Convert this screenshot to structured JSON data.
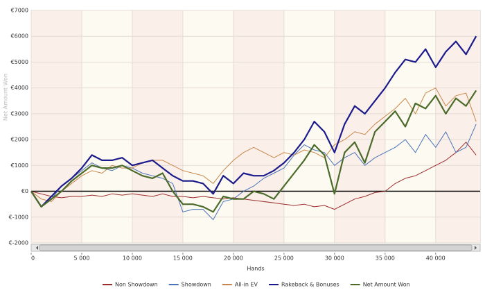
{
  "chart_data": {
    "type": "line",
    "x_label": "Hands",
    "y_label": "Net Amount Won",
    "x": [
      0,
      1000,
      2000,
      3000,
      4000,
      5000,
      6000,
      7000,
      8000,
      9000,
      10000,
      11000,
      12000,
      13000,
      14000,
      15000,
      16000,
      17000,
      18000,
      19000,
      20000,
      21000,
      22000,
      23000,
      24000,
      25000,
      26000,
      27000,
      28000,
      29000,
      30000,
      31000,
      32000,
      33000,
      34000,
      35000,
      36000,
      37000,
      38000,
      39000,
      40000,
      41000,
      42000,
      43000,
      44000
    ],
    "series": [
      {
        "name": "Non Showdown",
        "color": "#9b2d2d",
        "width": 1,
        "values": [
          0,
          -100,
          -200,
          -250,
          -200,
          -200,
          -150,
          -200,
          -100,
          -150,
          -100,
          -150,
          -200,
          -100,
          -200,
          -200,
          -250,
          -200,
          -250,
          -300,
          -250,
          -300,
          -350,
          -400,
          -450,
          -500,
          -550,
          -500,
          -600,
          -550,
          -700,
          -500,
          -300,
          -200,
          -50,
          0,
          300,
          500,
          600,
          800,
          1000,
          1200,
          1500,
          1900,
          1400
        ]
      },
      {
        "name": "Showdown",
        "color": "#4a73b8",
        "width": 1,
        "values": [
          0,
          -600,
          -300,
          200,
          500,
          800,
          1100,
          900,
          800,
          1000,
          900,
          700,
          600,
          500,
          300,
          -800,
          -700,
          -700,
          -1100,
          -400,
          -300,
          0,
          200,
          500,
          700,
          900,
          1400,
          1800,
          1600,
          1500,
          1000,
          1300,
          1500,
          1000,
          1300,
          1500,
          1700,
          2000,
          1500,
          2200,
          1700,
          2300,
          1500,
          1700,
          2600
        ]
      },
      {
        "name": "All-in EV",
        "color": "#c8864a",
        "width": 1,
        "values": [
          0,
          -300,
          -400,
          0,
          300,
          600,
          800,
          700,
          1000,
          900,
          900,
          1100,
          1200,
          1200,
          1000,
          800,
          700,
          600,
          300,
          800,
          1200,
          1500,
          1700,
          1500,
          1300,
          1500,
          1400,
          1600,
          1500,
          1300,
          1800,
          2000,
          2300,
          2200,
          2600,
          2900,
          3200,
          3600,
          3000,
          3800,
          4000,
          3300,
          3700,
          3800,
          2700
        ]
      },
      {
        "name": "Rakeback & Bonuses",
        "color": "#1a1a8c",
        "width": 2.2,
        "values": [
          0,
          -600,
          -200,
          200,
          500,
          900,
          1400,
          1200,
          1200,
          1300,
          1000,
          1100,
          1200,
          900,
          600,
          400,
          400,
          300,
          -100,
          600,
          300,
          700,
          600,
          600,
          800,
          1100,
          1500,
          2000,
          2700,
          2300,
          1500,
          2600,
          3300,
          3000,
          3500,
          4000,
          4600,
          5100,
          5000,
          5500,
          4800,
          5400,
          5800,
          5300,
          6000
        ]
      },
      {
        "name": "Net Amount Won",
        "color": "#4a6b2a",
        "width": 2.2,
        "values": [
          0,
          -600,
          -300,
          0,
          400,
          700,
          1000,
          900,
          900,
          1000,
          800,
          600,
          500,
          700,
          0,
          -500,
          -500,
          -600,
          -800,
          -200,
          -300,
          -300,
          0,
          -100,
          -300,
          200,
          700,
          1200,
          1800,
          1400,
          -100,
          1500,
          1900,
          1100,
          2300,
          2700,
          3100,
          2500,
          3400,
          3200,
          3700,
          3000,
          3600,
          3300,
          3900
        ]
      }
    ],
    "xlim": [
      0,
      44400
    ],
    "ylim": [
      -2000,
      7000
    ],
    "xticks": [
      0,
      {
        "value": 5000,
        "label": "5 000"
      },
      {
        "value": 10000,
        "label": "10 000"
      },
      {
        "value": 15000,
        "label": "15 000"
      },
      {
        "value": 20000,
        "label": "20 000"
      },
      {
        "value": 25000,
        "label": "25 000"
      },
      {
        "value": 30000,
        "label": "30 000"
      },
      {
        "value": 35000,
        "label": "35 000"
      },
      {
        "value": 40000,
        "label": "40 000"
      }
    ],
    "yticks": [
      {
        "value": -2000,
        "label": "€-2000"
      },
      {
        "value": -1000,
        "label": "€-1000"
      },
      {
        "value": 0,
        "label": "€0"
      },
      {
        "value": 1000,
        "label": "€1000"
      },
      {
        "value": 2000,
        "label": "€2000"
      },
      {
        "value": 3000,
        "label": "€3000"
      },
      {
        "value": 4000,
        "label": "€4000"
      },
      {
        "value": 5000,
        "label": "€5000"
      },
      {
        "value": 6000,
        "label": "€6000"
      },
      {
        "value": 7000,
        "label": "€7000"
      }
    ],
    "grid": true
  }
}
